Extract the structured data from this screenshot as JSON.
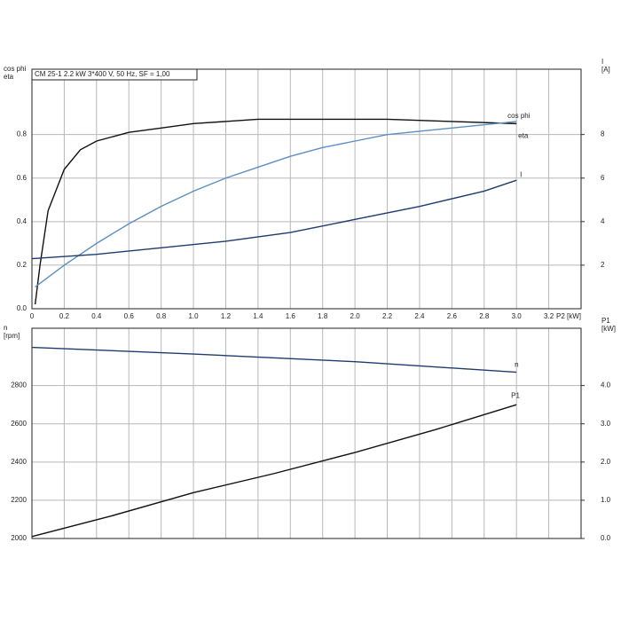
{
  "chart_data": [
    {
      "type": "line",
      "legend_box": "CM 25-1   2.2 kW   3*400 V, 50 Hz, SF = 1,00",
      "ylabel": [
        "cos phi",
        "eta"
      ],
      "y2label": [
        "I",
        "[A]"
      ],
      "xlabel": "P2 [kW]",
      "xlim": [
        0,
        3.4
      ],
      "xticks": [
        0,
        0.2,
        0.4,
        0.6,
        0.8,
        {
          "value": 1,
          "label": "1.0"
        },
        1.2,
        1.4,
        1.6,
        1.8,
        {
          "value": 2,
          "label": "2.0"
        },
        2.2,
        2.4,
        2.6,
        2.8,
        {
          "value": 3,
          "label": "3.0"
        },
        3.2
      ],
      "ylim": [
        0,
        1.1
      ],
      "yticks": [
        {
          "value": 0,
          "label": "0.0"
        },
        0.2,
        0.4,
        0.6,
        0.8
      ],
      "y2lim": [
        0,
        11
      ],
      "y2ticks": [
        2,
        4,
        6,
        8
      ],
      "grid": true,
      "series": [
        {
          "name": "eta",
          "color": "#111111",
          "x": [
            0.02,
            0.05,
            0.1,
            0.2,
            0.3,
            0.4,
            0.6,
            0.8,
            1.0,
            1.4,
            1.8,
            2.2,
            2.6,
            3.0
          ],
          "values": [
            0.02,
            0.2,
            0.45,
            0.64,
            0.73,
            0.77,
            0.81,
            0.83,
            0.85,
            0.87,
            0.87,
            0.87,
            0.86,
            0.85
          ]
        },
        {
          "name": "cos phi",
          "color": "#5b8ec4",
          "x": [
            0.02,
            0.2,
            0.4,
            0.6,
            0.8,
            1.0,
            1.2,
            1.4,
            1.6,
            1.8,
            2.0,
            2.2,
            2.6,
            3.0
          ],
          "values": [
            0.1,
            0.2,
            0.3,
            0.39,
            0.47,
            0.54,
            0.6,
            0.65,
            0.7,
            0.74,
            0.77,
            0.8,
            0.83,
            0.86
          ]
        },
        {
          "name": "I",
          "color": "#1f3b6e",
          "axis": "y2",
          "x": [
            0,
            0.4,
            0.8,
            1.2,
            1.6,
            2.0,
            2.4,
            2.8,
            3.0
          ],
          "values": [
            2.3,
            2.5,
            2.8,
            3.1,
            3.5,
            4.1,
            4.7,
            5.4,
            5.9
          ]
        }
      ]
    },
    {
      "type": "line",
      "ylabel": [
        "n",
        "[rpm]"
      ],
      "y2label": [
        "P1",
        "[kW]"
      ],
      "xlim": [
        0,
        3.4
      ],
      "ylim": [
        2000,
        3100
      ],
      "yticks": [
        2000,
        2200,
        2400,
        2600,
        2800
      ],
      "y2lim": [
        0,
        5.5
      ],
      "y2ticks": [
        {
          "value": 0,
          "label": "0.0"
        },
        {
          "value": 1,
          "label": "1.0"
        },
        {
          "value": 2,
          "label": "2.0"
        },
        {
          "value": 3,
          "label": "3.0"
        },
        {
          "value": 4,
          "label": "4.0"
        }
      ],
      "grid": true,
      "series": [
        {
          "name": "n",
          "color": "#1f3b6e",
          "x": [
            0,
            1.0,
            2.0,
            3.0
          ],
          "values": [
            3000,
            2965,
            2925,
            2870
          ]
        },
        {
          "name": "P1",
          "color": "#111111",
          "axis": "y2",
          "x": [
            0,
            0.5,
            1.0,
            1.5,
            2.0,
            2.5,
            3.0
          ],
          "values": [
            0.05,
            0.6,
            1.2,
            1.7,
            2.25,
            2.85,
            3.5
          ]
        }
      ]
    }
  ]
}
